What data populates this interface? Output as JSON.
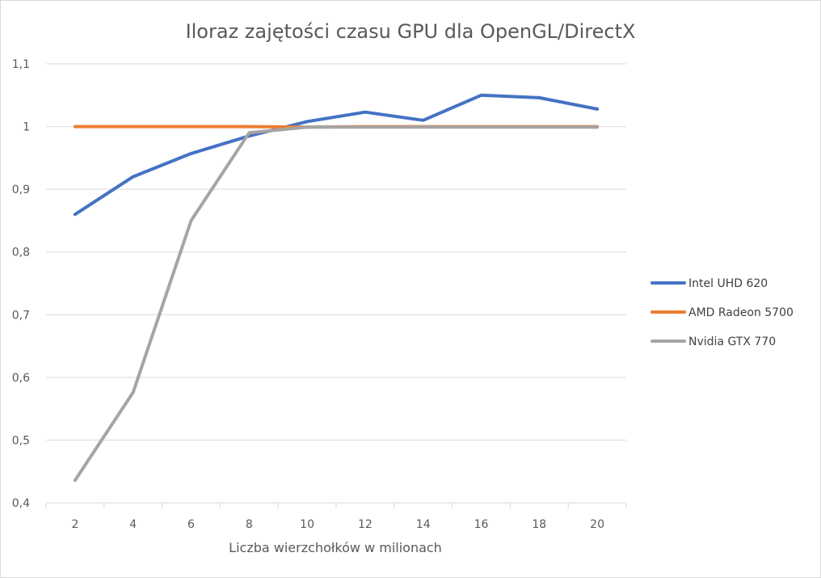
{
  "chart_data": {
    "type": "line",
    "title": "Iloraz zajętości czasu GPU dla OpenGL/DirectX",
    "xlabel": "Liczba wierzchołków w milionach",
    "ylabel": "",
    "categories": [
      "2",
      "4",
      "6",
      "8",
      "10",
      "12",
      "14",
      "16",
      "18",
      "20"
    ],
    "ylim": [
      0.4,
      1.1
    ],
    "yticks": [
      0.4,
      0.5,
      0.6,
      0.7,
      0.8,
      0.9,
      1.0,
      1.1
    ],
    "ytick_labels": [
      "0,4",
      "0,5",
      "0,6",
      "0,7",
      "0,8",
      "0,9",
      "1",
      "1,1"
    ],
    "grid": true,
    "legend_position": "right",
    "series": [
      {
        "name": "Intel UHD 620",
        "color": "#4472C4",
        "values": [
          0.86,
          0.92,
          0.957,
          0.985,
          1.008,
          1.023,
          1.01,
          1.05,
          1.046,
          1.028
        ]
      },
      {
        "name": "AMD Radeon 5700",
        "color": "#ED7D31",
        "values": [
          1.0,
          1.0,
          1.0,
          1.0,
          0.999,
          1.0,
          1.0,
          1.0,
          1.0,
          1.0
        ]
      },
      {
        "name": "Nvidia GTX 770",
        "color": "#A5A5A5",
        "values": [
          0.436,
          0.576,
          0.85,
          0.99,
          0.999,
          0.999,
          0.999,
          0.999,
          0.999,
          0.999
        ]
      }
    ]
  }
}
